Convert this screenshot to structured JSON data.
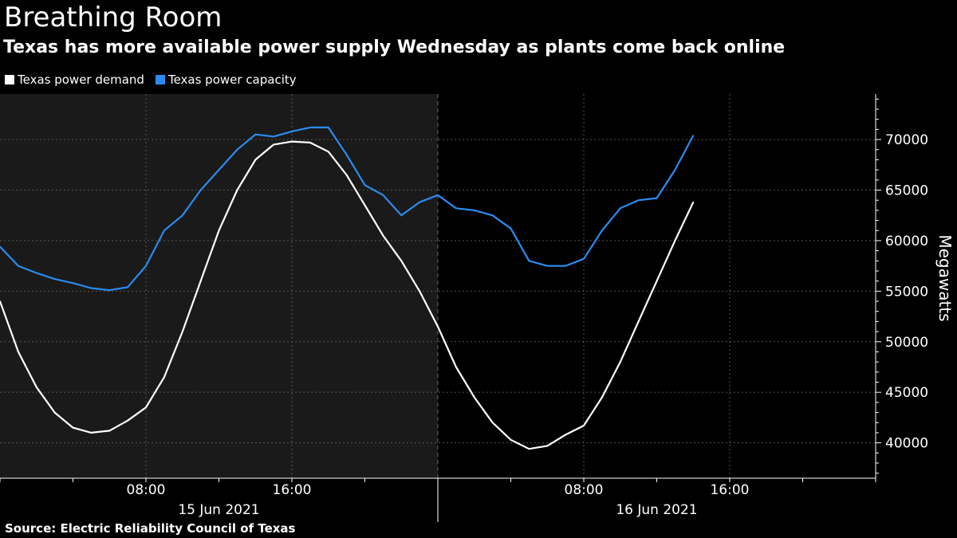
{
  "header": {
    "title": "Breathing Room",
    "subtitle": "Texas has more available power supply Wednesday as plants come back online"
  },
  "legend": {
    "items": [
      {
        "label": "Texas power demand",
        "color": "#ffffff"
      },
      {
        "label": "Texas power capacity",
        "color": "#2a8cf0"
      }
    ]
  },
  "source": "Source: Electric Reliability Council of Texas",
  "chart_data": {
    "type": "line",
    "ylabel": "Megawatts",
    "ylim": [
      36500,
      74500
    ],
    "xlim_hours": [
      0,
      48
    ],
    "y_ticks": [
      40000,
      45000,
      50000,
      55000,
      60000,
      65000,
      70000
    ],
    "x_ticks": [
      {
        "hour": 8,
        "label": "08:00"
      },
      {
        "hour": 16,
        "label": "16:00"
      },
      {
        "hour": 32,
        "label": "08:00"
      },
      {
        "hour": 40,
        "label": "16:00"
      }
    ],
    "date_labels": [
      {
        "hour": 12,
        "label": "15 Jun 2021"
      },
      {
        "hour": 36,
        "label": "16 Jun 2021"
      }
    ],
    "shaded_region_hours": [
      0,
      24
    ],
    "grid": true,
    "colors": {
      "demand": "#ffffff",
      "capacity": "#2a8cf0",
      "shade": "#1a1a1a",
      "grid": "#555555"
    },
    "series": [
      {
        "name": "Texas power demand",
        "x_hours": [
          0,
          1,
          2,
          3,
          4,
          5,
          6,
          7,
          8,
          9,
          10,
          11,
          12,
          13,
          14,
          15,
          16,
          17,
          18,
          19,
          20,
          21,
          22,
          23,
          24,
          25,
          26,
          27,
          28,
          29,
          30,
          31,
          32,
          33,
          34,
          35,
          36,
          37,
          38
        ],
        "values": [
          54000,
          49000,
          45500,
          43000,
          41500,
          41000,
          41200,
          42200,
          43500,
          46500,
          51000,
          56000,
          61000,
          65000,
          68000,
          69500,
          69800,
          69700,
          68800,
          66500,
          63500,
          60500,
          58000,
          55000,
          51500,
          47500,
          44500,
          42000,
          40300,
          39400,
          39700,
          40800,
          41700,
          44500,
          48000,
          52000,
          56000,
          60000,
          63800
        ]
      },
      {
        "name": "Texas power capacity",
        "x_hours": [
          0,
          1,
          2,
          3,
          4,
          5,
          6,
          7,
          8,
          9,
          10,
          11,
          12,
          13,
          14,
          15,
          16,
          17,
          18,
          19,
          20,
          21,
          22,
          23,
          24,
          25,
          26,
          27,
          28,
          29,
          30,
          31,
          32,
          33,
          34,
          35,
          36,
          37,
          38
        ],
        "values": [
          59400,
          57500,
          56800,
          56200,
          55800,
          55300,
          55100,
          55400,
          57500,
          61000,
          62500,
          65000,
          67000,
          69000,
          70500,
          70300,
          70800,
          71200,
          71200,
          68500,
          65500,
          64500,
          62500,
          63800,
          64500,
          63200,
          63000,
          62500,
          61200,
          58000,
          57500,
          57500,
          58200,
          61000,
          63200,
          64000,
          64200,
          67000,
          70400
        ]
      }
    ]
  }
}
